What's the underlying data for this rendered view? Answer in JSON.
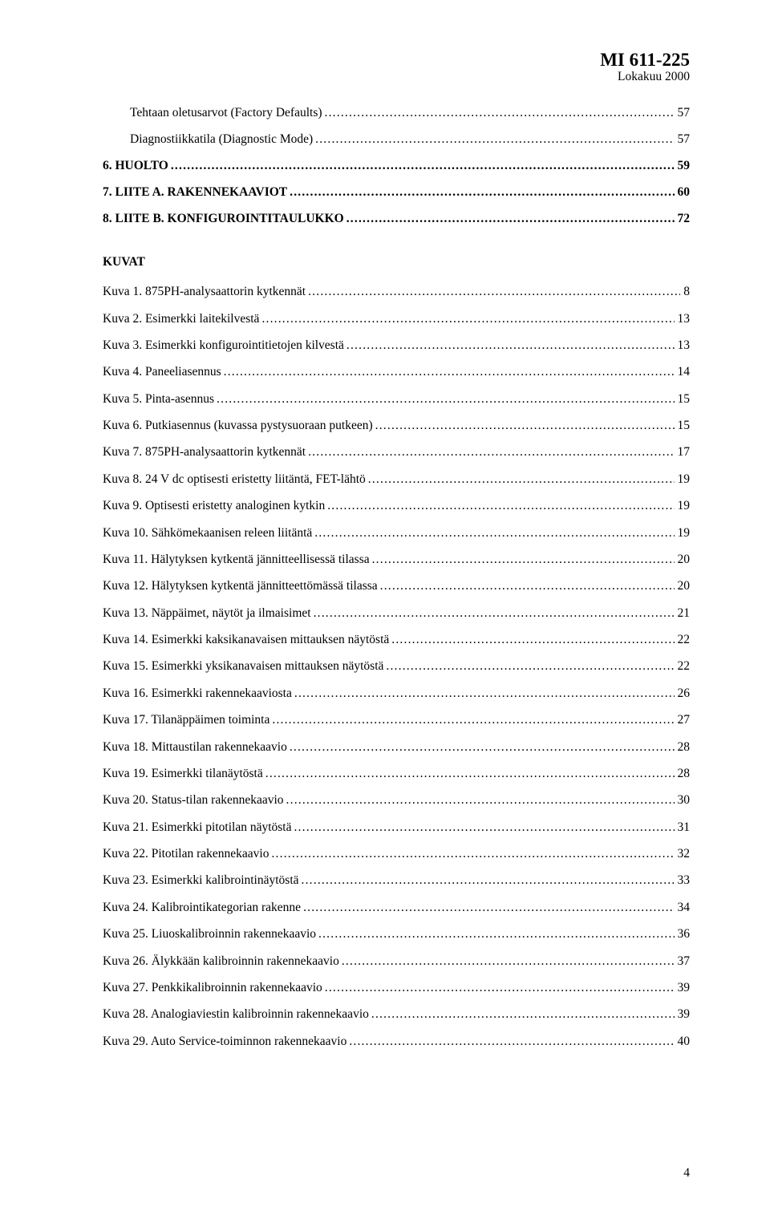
{
  "header": {
    "doc_id": "MI 611-225",
    "doc_date": "Lokakuu 2000"
  },
  "toc_sections": [
    {
      "indent": true,
      "heading": false,
      "label": "Tehtaan oletusarvot (Factory Defaults)",
      "page": "57"
    },
    {
      "indent": true,
      "heading": false,
      "label": "Diagnostiikkatila (Diagnostic Mode)",
      "page": "57"
    },
    {
      "indent": false,
      "heading": true,
      "label": "6.   HUOLTO",
      "page": "59"
    },
    {
      "indent": false,
      "heading": true,
      "label": "7.   LIITE A. RAKENNEKAAVIOT",
      "page": "60"
    },
    {
      "indent": false,
      "heading": true,
      "label": "8.   LIITE B. KONFIGUROINTITAULUKKO",
      "page": "72"
    }
  ],
  "figures_heading": "KUVAT",
  "figures": [
    {
      "label": "Kuva 1. 875PH-analysaattorin kytkennät",
      "page": "8"
    },
    {
      "label": "Kuva 2. Esimerkki laitekilvestä",
      "page": "13"
    },
    {
      "label": "Kuva 3. Esimerkki konfigurointitietojen kilvestä",
      "page": "13"
    },
    {
      "label": "Kuva 4. Paneeliasennus",
      "page": "14"
    },
    {
      "label": "Kuva 5. Pinta-asennus",
      "page": "15"
    },
    {
      "label": "Kuva 6. Putkiasennus (kuvassa pystysuoraan putkeen)",
      "page": "15"
    },
    {
      "label": "Kuva 7. 875PH-analysaattorin kytkennät",
      "page": "17"
    },
    {
      "label": "Kuva 8. 24 V dc optisesti eristetty liitäntä, FET-lähtö",
      "page": "19"
    },
    {
      "label": "Kuva 9. Optisesti eristetty analoginen kytkin",
      "page": "19"
    },
    {
      "label": "Kuva 10. Sähkömekaanisen releen liitäntä",
      "page": "19"
    },
    {
      "label": "Kuva 11. Hälytyksen kytkentä jännitteellisessä tilassa",
      "page": "20"
    },
    {
      "label": "Kuva 12. Hälytyksen kytkentä jännitteettömässä tilassa",
      "page": "20"
    },
    {
      "label": "Kuva 13. Näppäimet, näytöt ja ilmaisimet",
      "page": "21"
    },
    {
      "label": "Kuva 14. Esimerkki kaksikanavaisen mittauksen näytöstä",
      "page": "22"
    },
    {
      "label": "Kuva 15. Esimerkki yksikanavaisen mittauksen näytöstä",
      "page": "22"
    },
    {
      "label": "Kuva 16. Esimerkki rakennekaaviosta",
      "page": "26"
    },
    {
      "label": "Kuva 17. Tilanäppäimen toiminta",
      "page": "27"
    },
    {
      "label": "Kuva 18. Mittaustilan rakennekaavio",
      "page": "28"
    },
    {
      "label": "Kuva 19. Esimerkki tilanäytöstä",
      "page": "28"
    },
    {
      "label": "Kuva 20. Status-tilan rakennekaavio",
      "page": "30"
    },
    {
      "label": "Kuva 21. Esimerkki pitotilan näytöstä",
      "page": "31"
    },
    {
      "label": "Kuva 22. Pitotilan rakennekaavio",
      "page": "32"
    },
    {
      "label": "Kuva 23. Esimerkki kalibrointinäytöstä",
      "page": "33"
    },
    {
      "label": "Kuva 24. Kalibrointikategorian rakenne",
      "page": "34"
    },
    {
      "label": "Kuva 25. Liuoskalibroinnin rakennekaavio",
      "page": "36"
    },
    {
      "label": "Kuva 26. Älykkään kalibroinnin rakennekaavio",
      "page": "37"
    },
    {
      "label": "Kuva 27. Penkkikalibroinnin rakennekaavio",
      "page": "39"
    },
    {
      "label": "Kuva 28. Analogiaviestin kalibroinnin rakennekaavio",
      "page": "39"
    },
    {
      "label": "Kuva 29. Auto Service-toiminnon rakennekaavio",
      "page": "40"
    }
  ],
  "page_number": "4",
  "style": {
    "background_color": "#ffffff",
    "text_color": "#000000",
    "font_family": "Times New Roman",
    "body_fontsize_pt": 12,
    "docid_fontsize_pt": 17,
    "leader_char": "."
  }
}
